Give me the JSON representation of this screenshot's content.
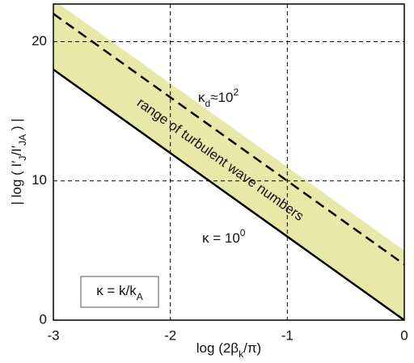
{
  "chart_data": {
    "type": "line",
    "x_label": [
      "log (2β",
      "k",
      "/π)"
    ],
    "y_label": [
      "| log ( I′",
      "J",
      "/I′",
      "JA",
      " ) |"
    ],
    "xlim": [
      -3,
      0
    ],
    "ylim": [
      0,
      22.7
    ],
    "xticks": [
      -3,
      -2,
      -1,
      0
    ],
    "yticks": [
      0,
      10,
      20
    ],
    "grid": true,
    "x": [
      -3,
      0
    ],
    "series": [
      {
        "name": [
          "κ = 10",
          "0"
        ],
        "color": "#000000",
        "style": "solid",
        "values": [
          18,
          0
        ]
      },
      {
        "name": [
          "κ",
          "d",
          "≈10",
          "2"
        ],
        "color": "#000000",
        "style": "dashed",
        "values": [
          22,
          4
        ]
      }
    ],
    "band": {
      "color": "#e8e8a8",
      "upper": [
        23,
        5
      ]
    },
    "band_label": "range of turbulent wave numbers",
    "legend_box": [
      "κ = k/k",
      "A"
    ]
  }
}
